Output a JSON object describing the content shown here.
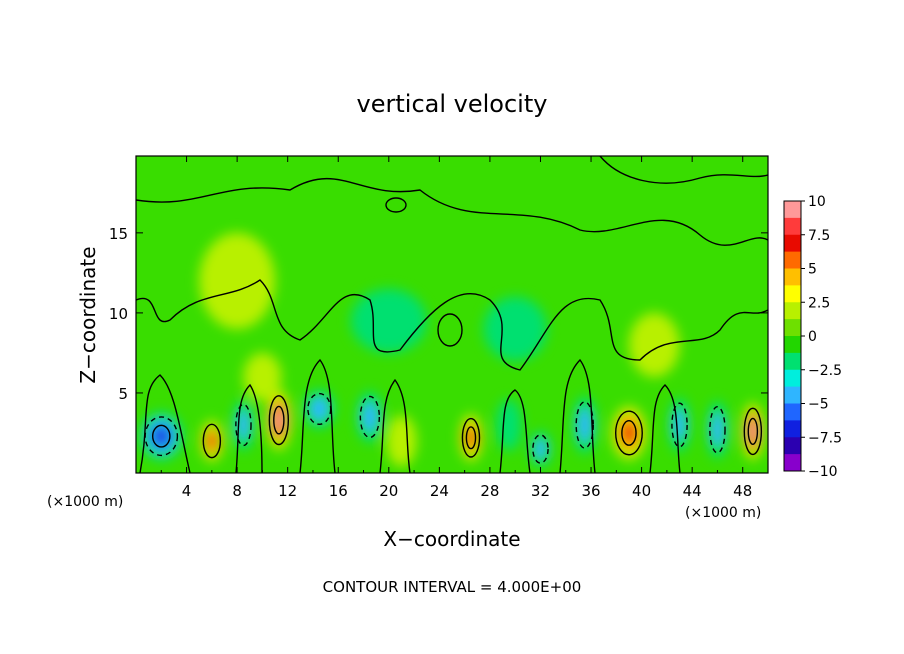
{
  "chart_data": {
    "type": "heatmap",
    "title": "vertical velocity",
    "xlabel": "X−coordinate",
    "ylabel": "Z−coordinate",
    "x_unit_left": "(×1000 m)",
    "y_unit_right": "(×1000 m)",
    "footer": "CONTOUR INTERVAL = 4.000E+00",
    "xlim": [
      0,
      50
    ],
    "ylim": [
      0,
      19.8
    ],
    "x_ticks": [
      "4",
      "8",
      "12",
      "16",
      "20",
      "24",
      "28",
      "32",
      "36",
      "40",
      "44",
      "48"
    ],
    "y_ticks": [
      "5",
      "10",
      "15"
    ],
    "colorbar": {
      "range": [
        -10,
        10
      ],
      "ticks": [
        "10",
        "7.5",
        "5",
        "2.5",
        "0",
        "−2.5",
        "−5",
        "−7.5",
        "−10"
      ],
      "colors": [
        "#ff9999",
        "#ff3b3b",
        "#e80a00",
        "#ff6a00",
        "#ffbf00",
        "#ffff00",
        "#b8f000",
        "#6ee000",
        "#22d600",
        "#00e070",
        "#00eedd",
        "#2fb5ff",
        "#1f66ff",
        "#1020e0",
        "#2b00b0",
        "#8800cc"
      ]
    },
    "cells": [
      {
        "x": 2.0,
        "z": 2.3,
        "value": -8.0,
        "sx": 1.7,
        "sz": 1.5
      },
      {
        "x": 6.0,
        "z": 2.0,
        "value": 7.0,
        "sx": 0.9,
        "sz": 1.3
      },
      {
        "x": 8.5,
        "z": 3.0,
        "value": -5.0,
        "sx": 0.8,
        "sz": 1.6
      },
      {
        "x": 11.3,
        "z": 3.3,
        "value": 9.5,
        "sx": 1.0,
        "sz": 1.9
      },
      {
        "x": 14.5,
        "z": 4.0,
        "value": -5.0,
        "sx": 1.2,
        "sz": 1.2
      },
      {
        "x": 18.5,
        "z": 3.5,
        "value": -4.5,
        "sx": 1.0,
        "sz": 1.6
      },
      {
        "x": 21.0,
        "z": 2.0,
        "value": 3.0,
        "sx": 1.2,
        "sz": 1.6
      },
      {
        "x": 26.5,
        "z": 2.2,
        "value": 8.0,
        "sx": 0.9,
        "sz": 1.5
      },
      {
        "x": 29.5,
        "z": 3.0,
        "value": -3.0,
        "sx": 1.0,
        "sz": 1.6
      },
      {
        "x": 32.0,
        "z": 1.5,
        "value": -4.5,
        "sx": 0.8,
        "sz": 1.1
      },
      {
        "x": 35.5,
        "z": 3.0,
        "value": -5.0,
        "sx": 0.9,
        "sz": 1.8
      },
      {
        "x": 39.0,
        "z": 2.5,
        "value": 8.5,
        "sx": 1.4,
        "sz": 1.7
      },
      {
        "x": 43.0,
        "z": 3.0,
        "value": -5.0,
        "sx": 0.8,
        "sz": 1.7
      },
      {
        "x": 46.0,
        "z": 2.7,
        "value": -5.0,
        "sx": 0.8,
        "sz": 1.8
      },
      {
        "x": 48.8,
        "z": 2.6,
        "value": 9.5,
        "sx": 0.9,
        "sz": 1.8
      },
      {
        "x": 8.0,
        "z": 12.0,
        "value": 1.5,
        "sx": 3.0,
        "sz": 3.0
      },
      {
        "x": 20.0,
        "z": 9.5,
        "value": -1.5,
        "sx": 3.0,
        "sz": 2.0
      },
      {
        "x": 30.0,
        "z": 9.0,
        "value": -1.2,
        "sx": 2.5,
        "sz": 2.0
      },
      {
        "x": 41.0,
        "z": 8.0,
        "value": 1.5,
        "sx": 2.0,
        "sz": 2.0
      },
      {
        "x": 10.0,
        "z": 6.0,
        "value": 1.2,
        "sx": 1.5,
        "sz": 1.5
      }
    ]
  }
}
